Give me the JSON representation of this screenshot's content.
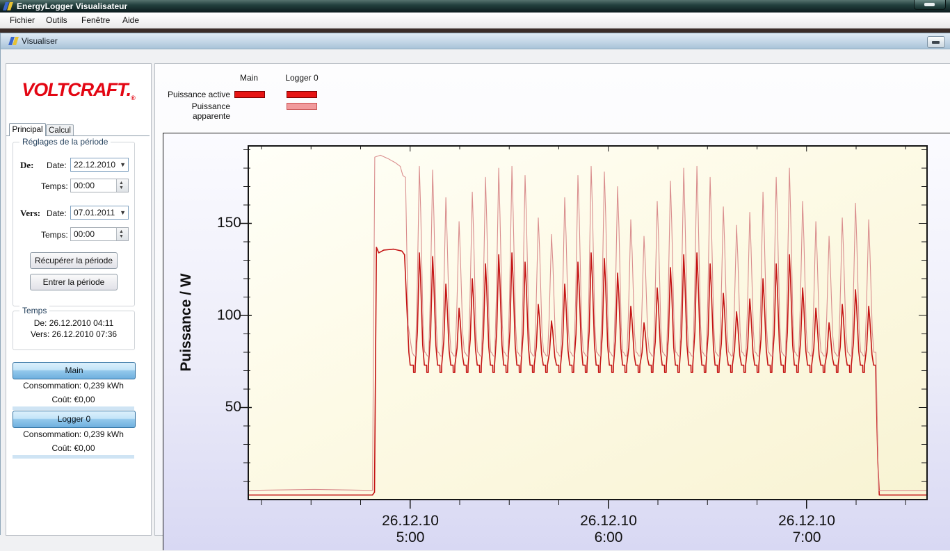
{
  "window": {
    "title": "EnergyLogger Visualisateur",
    "menu": [
      "Fichier",
      "Outils",
      "Fenêtre",
      "Aide"
    ]
  },
  "child_window": {
    "title": "Visualiser"
  },
  "sidebar": {
    "logo": "VOLTCRAFT",
    "logo_reg": "®",
    "tabs": [
      {
        "label": "Principal",
        "active": true
      },
      {
        "label": "Calcul",
        "active": false
      }
    ],
    "period_group": {
      "title": "Réglages de la période",
      "from_label": "De:",
      "to_label": "Vers:",
      "date_label": "Date:",
      "time_label": "Temps:",
      "from_date": "22.12.2010",
      "from_time": "00:00",
      "to_date": "07.01.2011",
      "to_time": "00:00",
      "fetch_button": "Récupérer la période",
      "enter_button": "Entrer la période"
    },
    "time_group": {
      "title": "Temps",
      "from": "De: 26.12.2010 04:11",
      "to": "Vers: 26.12.2010 07:36"
    },
    "channels": [
      {
        "button": "Main",
        "consumption_label": "Consommation:",
        "consumption": "0,239 kWh",
        "cost_label": "Coût:",
        "cost": "€0,00"
      },
      {
        "button": "Logger 0",
        "consumption_label": "Consommation:",
        "consumption": "0,239 kWh",
        "cost_label": "Coût:",
        "cost": "€0,00"
      }
    ]
  },
  "legend": {
    "columns": [
      "Main",
      "Logger 0"
    ],
    "rows": [
      "Puissance active",
      "Puissance apparente"
    ],
    "active_fill": "#e61414",
    "active_border": "#7d0000",
    "apparent_fill": "#f19a9c",
    "apparent_border": "#c85050"
  },
  "chart_data": {
    "type": "line",
    "title": "",
    "xlabel": "",
    "ylabel": "Puissance / W",
    "y_range": [
      0,
      192
    ],
    "y_minor_step": 10,
    "y_major_ticks": [
      50,
      100,
      150
    ],
    "y_tick_display": [
      "150",
      "100",
      "50"
    ],
    "x_time_start": "26.12.2010 04:11",
    "x_time_end": "26.12.2010 07:36",
    "x_range_minutes": [
      0,
      205.5
    ],
    "x_minor_step_minutes": 15,
    "x_first_minor_minute": 4,
    "x_major_ticks": [
      {
        "t": 49,
        "date": "26.12.10",
        "time": "5:00"
      },
      {
        "t": 109,
        "date": "26.12.10",
        "time": "6:00"
      },
      {
        "t": 169,
        "date": "26.12.10",
        "time": "7:00"
      }
    ],
    "grid": false,
    "legend_position": "top-left",
    "series": [
      {
        "name": "Puissance active",
        "color": "#c41414",
        "width": 1.6,
        "pre_points": [
          [
            0,
            2.5
          ],
          [
            37.6,
            2.5
          ],
          [
            38.2,
            4
          ],
          [
            38.8,
            137
          ],
          [
            39.5,
            134
          ],
          [
            41,
            135.5
          ],
          [
            44,
            136
          ],
          [
            46.5,
            135
          ],
          [
            47.3,
            133
          ],
          [
            48.6,
            80
          ],
          [
            49.0,
            73
          ]
        ],
        "cycles": {
          "t0": 49.5,
          "period": 4,
          "dip": 73,
          "notch": 69,
          "peaks": [
            134,
            132,
            117,
            104,
            120,
            128,
            133,
            134,
            129,
            106,
            97,
            117,
            129,
            134,
            131,
            123,
            105,
            96,
            115,
            126,
            133,
            134,
            128,
            112,
            102,
            109,
            120,
            128,
            133,
            115,
            104,
            96,
            106,
            114,
            105
          ],
          "shape": [
            [
              0.0,
              "abs",
              "dip"
            ],
            [
              0.5,
              "abs",
              "dip"
            ],
            [
              0.55,
              "abs",
              "notch"
            ],
            [
              1.0,
              "abs",
              "notch"
            ],
            [
              1.05,
              "abs",
              "dip"
            ],
            [
              1.7,
              "rel",
              0.3
            ],
            [
              2.3,
              "rel",
              1.0
            ],
            [
              2.65,
              "rel",
              0.78
            ],
            [
              3.3,
              "rel",
              0.18
            ],
            [
              3.8,
              "abs",
              "dip"
            ]
          ]
        },
        "post_points": [
          [
            189.9,
            73
          ],
          [
            190.6,
            20
          ],
          [
            191.0,
            2.5
          ],
          [
            205.5,
            2.5
          ]
        ]
      },
      {
        "name": "Puissance apparente",
        "color": "#d98d8d",
        "width": 1.1,
        "pre_points": [
          [
            0,
            5
          ],
          [
            20,
            5.5
          ],
          [
            37.6,
            5
          ],
          [
            38.3,
            186
          ],
          [
            40,
            187
          ],
          [
            42.5,
            185
          ],
          [
            44.5,
            183
          ],
          [
            46,
            181
          ],
          [
            46.8,
            176
          ],
          [
            47.6,
            175
          ],
          [
            48.4,
            95
          ],
          [
            49.1,
            86
          ]
        ],
        "cycles": {
          "t0": 49.5,
          "period": 4,
          "dip": 80,
          "notch": 78,
          "peaks": [
            181,
            179,
            164,
            151,
            167,
            175,
            180,
            181,
            176,
            153,
            144,
            164,
            176,
            181,
            178,
            170,
            152,
            143,
            162,
            173,
            180,
            181,
            175,
            159,
            149,
            156,
            167,
            175,
            180,
            162,
            151,
            143,
            153,
            161,
            152
          ],
          "shape": [
            [
              0.1,
              "abs",
              "dip"
            ],
            [
              0.7,
              "abs",
              "notch"
            ],
            [
              1.1,
              "abs",
              "notch"
            ],
            [
              1.6,
              "rel",
              0.3
            ],
            [
              2.3,
              "rel",
              1.0
            ],
            [
              2.7,
              "rel",
              0.75
            ],
            [
              3.4,
              "rel",
              0.15
            ],
            [
              3.9,
              "abs",
              "dip"
            ]
          ]
        },
        "post_points": [
          [
            190.0,
            80
          ],
          [
            190.8,
            5
          ],
          [
            205.5,
            5
          ]
        ]
      }
    ]
  }
}
